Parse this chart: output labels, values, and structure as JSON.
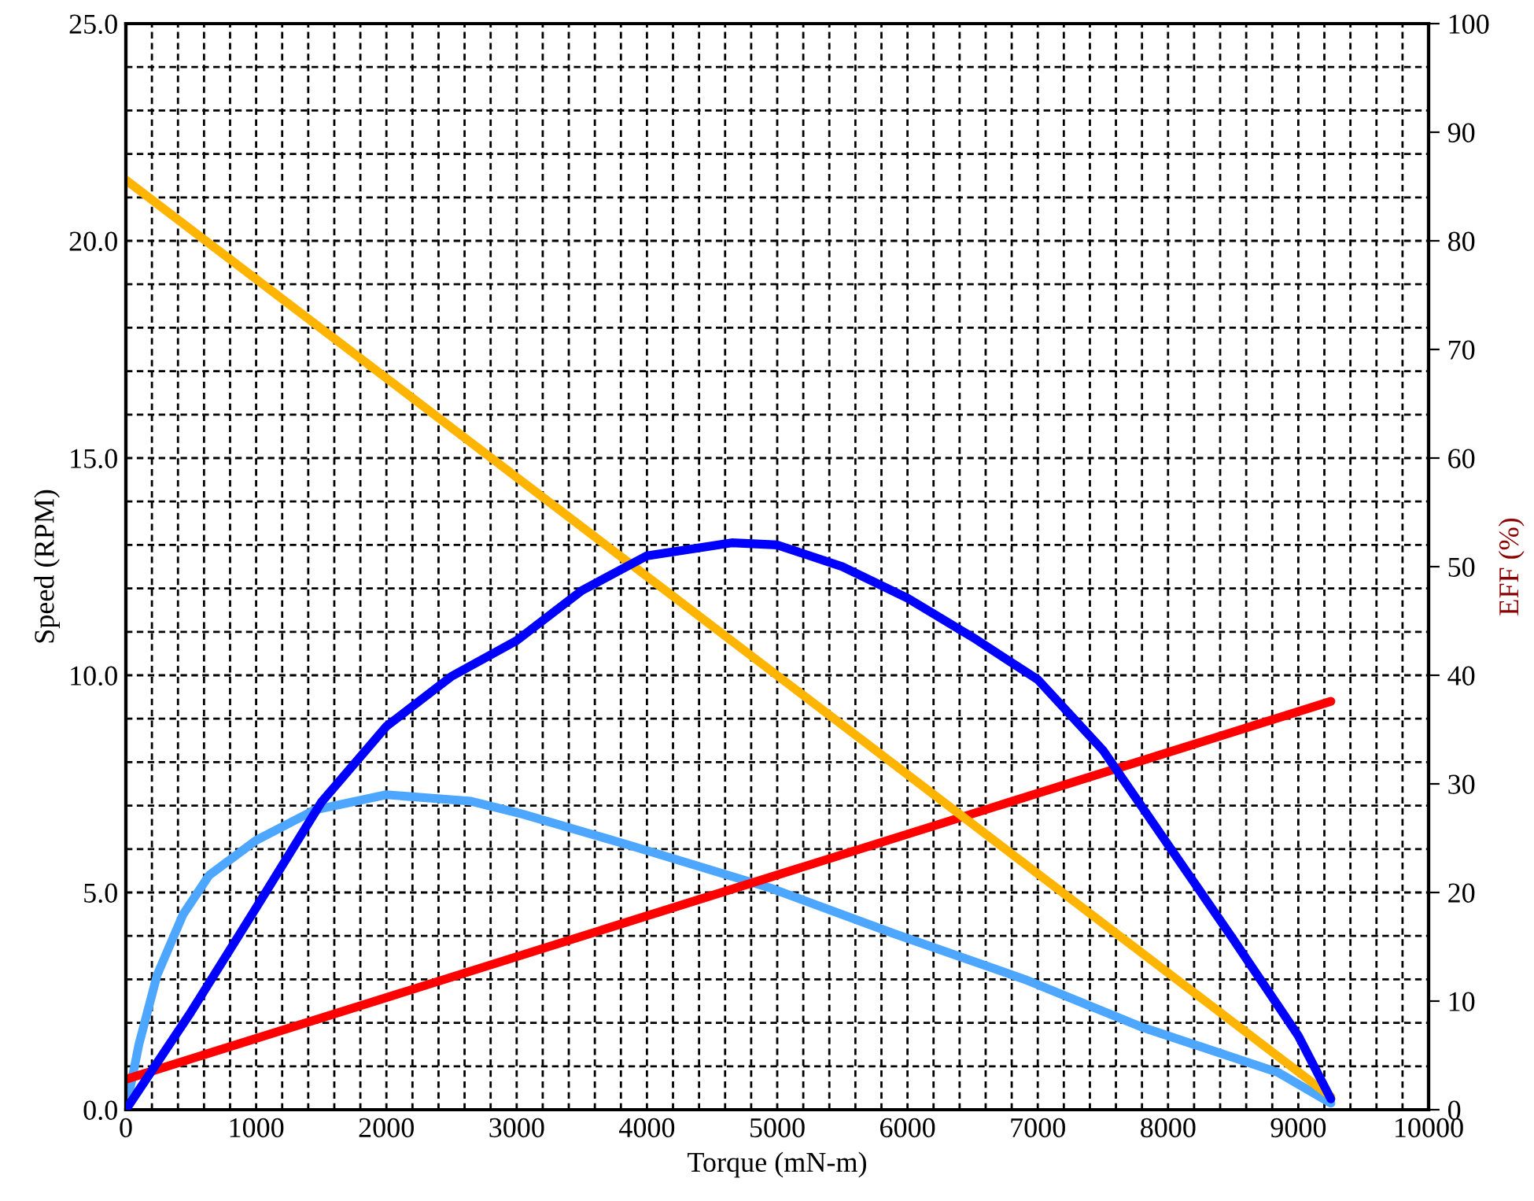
{
  "chart_data": {
    "type": "line",
    "xlabel": "Torque (mN-m)",
    "ylabel": "Speed (RPM)",
    "y2label": "EFF (%)",
    "xlim": [
      0,
      10000
    ],
    "xticks": [
      0,
      {
        "value": 200,
        "label": null
      },
      {
        "value": 400,
        "label": null
      },
      {
        "value": 600,
        "label": null
      },
      {
        "value": 800,
        "label": null
      },
      1000,
      {
        "value": 1200,
        "label": null
      },
      {
        "value": 1400,
        "label": null
      },
      {
        "value": 1600,
        "label": null
      },
      {
        "value": 1800,
        "label": null
      },
      2000,
      {
        "value": 2200,
        "label": null
      },
      {
        "value": 2400,
        "label": null
      },
      {
        "value": 2600,
        "label": null
      },
      {
        "value": 2800,
        "label": null
      },
      3000,
      {
        "value": 3200,
        "label": null
      },
      {
        "value": 3400,
        "label": null
      },
      {
        "value": 3600,
        "label": null
      },
      {
        "value": 3800,
        "label": null
      },
      4000,
      {
        "value": 4200,
        "label": null
      },
      {
        "value": 4400,
        "label": null
      },
      {
        "value": 4600,
        "label": null
      },
      {
        "value": 4800,
        "label": null
      },
      5000,
      {
        "value": 5200,
        "label": null
      },
      {
        "value": 5400,
        "label": null
      },
      {
        "value": 5600,
        "label": null
      },
      {
        "value": 5800,
        "label": null
      },
      6000,
      {
        "value": 6200,
        "label": null
      },
      {
        "value": 6400,
        "label": null
      },
      {
        "value": 6600,
        "label": null
      },
      {
        "value": 6800,
        "label": null
      },
      7000,
      {
        "value": 7200,
        "label": null
      },
      {
        "value": 7400,
        "label": null
      },
      {
        "value": 7600,
        "label": null
      },
      {
        "value": 7800,
        "label": null
      },
      8000,
      {
        "value": 8200,
        "label": null
      },
      {
        "value": 8400,
        "label": null
      },
      {
        "value": 8600,
        "label": null
      },
      {
        "value": 8800,
        "label": null
      },
      9000,
      {
        "value": 9200,
        "label": null
      },
      {
        "value": 9400,
        "label": null
      },
      {
        "value": 9600,
        "label": null
      },
      {
        "value": 9800,
        "label": null
      },
      10000
    ],
    "ylim": [
      0,
      25
    ],
    "yticks": [
      {
        "value": 0,
        "label": "0.0"
      },
      {
        "value": 1,
        "label": null
      },
      {
        "value": 2,
        "label": null
      },
      {
        "value": 3,
        "label": null
      },
      {
        "value": 4,
        "label": null
      },
      {
        "value": 5,
        "label": "5.0"
      },
      {
        "value": 6,
        "label": null
      },
      {
        "value": 7,
        "label": null
      },
      {
        "value": 8,
        "label": null
      },
      {
        "value": 9,
        "label": null
      },
      {
        "value": 10,
        "label": "10.0"
      },
      {
        "value": 11,
        "label": null
      },
      {
        "value": 12,
        "label": null
      },
      {
        "value": 13,
        "label": null
      },
      {
        "value": 14,
        "label": null
      },
      {
        "value": 15,
        "label": "15.0"
      },
      {
        "value": 16,
        "label": null
      },
      {
        "value": 17,
        "label": null
      },
      {
        "value": 18,
        "label": null
      },
      {
        "value": 19,
        "label": null
      },
      {
        "value": 20,
        "label": "20.0"
      },
      {
        "value": 21,
        "label": null
      },
      {
        "value": 22,
        "label": null
      },
      {
        "value": 23,
        "label": null
      },
      {
        "value": 24,
        "label": null
      },
      {
        "value": 25,
        "label": "25.0"
      }
    ],
    "y2lim": [
      0,
      100
    ],
    "y2ticks": [
      0,
      10,
      20,
      30,
      40,
      50,
      60,
      70,
      80,
      90,
      100
    ],
    "grid": true,
    "marker": "none",
    "line_style": "solid",
    "legend": false,
    "series": [
      {
        "color": "#ffb400",
        "x": [
          0,
          9250
        ],
        "values": [
          21.4,
          0.3
        ]
      },
      {
        "color": "#ff0000",
        "x": [
          0,
          9250
        ],
        "values": [
          0.7,
          9.4
        ]
      },
      {
        "color": "#4da6ff",
        "x": [
          0,
          100,
          240,
          440,
          640,
          1000,
          1450,
          2000,
          2650,
          3050,
          3850,
          4950,
          5900,
          6900,
          7800,
          8850,
          9250
        ],
        "values": [
          0,
          1.5,
          3.1,
          4.5,
          5.4,
          6.2,
          6.9,
          7.25,
          7.1,
          6.8,
          6.1,
          5.1,
          4.05,
          3.0,
          1.9,
          0.85,
          0.15
        ]
      },
      {
        "color": "#0000ff",
        "axis": "y2",
        "x": [
          0,
          100,
          250,
          500,
          1000,
          1500,
          2000,
          2500,
          3000,
          3500,
          4000,
          4650,
          5000,
          5500,
          6000,
          6500,
          7000,
          7500,
          8000,
          8500,
          9000,
          9250
        ],
        "values": [
          0,
          1.8,
          4.5,
          9.0,
          18.6,
          28.3,
          35.3,
          39.9,
          43.2,
          47.8,
          51.0,
          52.2,
          52.0,
          50.0,
          47.1,
          43.5,
          39.6,
          33.1,
          24.4,
          15.7,
          6.8,
          1.0
        ]
      }
    ]
  }
}
